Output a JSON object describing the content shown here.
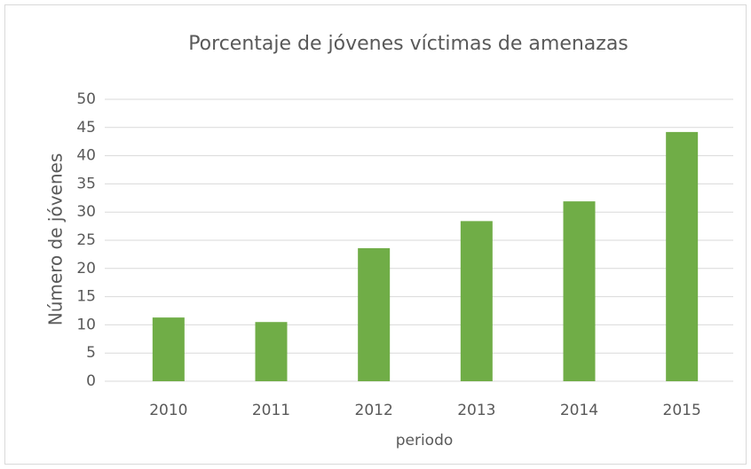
{
  "chart_data": {
    "type": "bar",
    "title": "Porcentaje de jóvenes víctimas de amenazas",
    "x_label": "periodo",
    "y_label": "Número de jóvenes",
    "categories": [
      "2010",
      "2011",
      "2012",
      "2013",
      "2014",
      "2015"
    ],
    "values": [
      11.3,
      10.5,
      23.6,
      28.4,
      31.9,
      44.2
    ],
    "color": "#70ad47",
    "ylim": [
      0,
      50
    ],
    "yticks": [
      0,
      5,
      10,
      15,
      20,
      25,
      30,
      35,
      40,
      45,
      50
    ],
    "grid": true
  }
}
